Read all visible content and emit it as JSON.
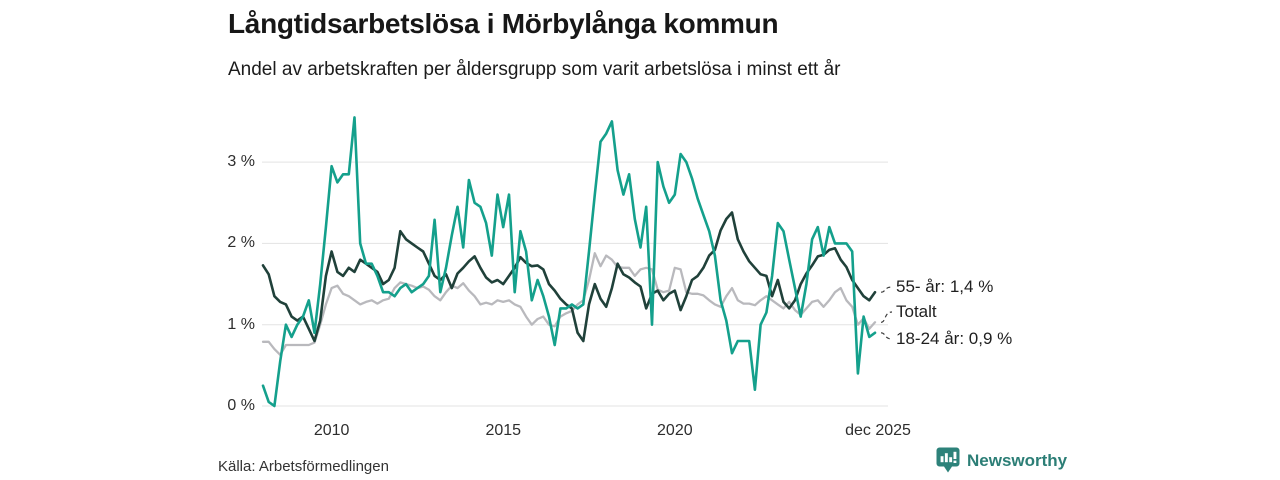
{
  "source": {
    "label": "Källa: Arbetsförmedlingen"
  },
  "branding": {
    "name": "Newsworthy",
    "brand_color": "#2d827a"
  },
  "chart_data": {
    "type": "line",
    "title": "Långtidsarbetslösa i Mörbylånga kommun",
    "subtitle": "Andel av arbetskraften per åldersgrupp som varit arbetslösa i minst ett år",
    "unit": "% av arbetskraften",
    "x_unit": "decimal_year",
    "x_start": 2008.0,
    "x_step": 0.16667,
    "x_end_label_year": 2025.92,
    "ylim": [
      0,
      3.6
    ],
    "grid": "horizontal-only",
    "legend_position": "end-of-line-labels",
    "background": "#ffffff",
    "grid_color": "#e3e3e3",
    "yticks": [
      {
        "v": 0,
        "label": "0 %"
      },
      {
        "v": 1,
        "label": "1 %"
      },
      {
        "v": 2,
        "label": "2 %"
      },
      {
        "v": 3,
        "label": "3 %"
      }
    ],
    "xticks": [
      {
        "year": 2010,
        "label": "2010"
      },
      {
        "year": 2015,
        "label": "2015"
      },
      {
        "year": 2020,
        "label": "2020"
      },
      {
        "year": 2025.92,
        "label": "dec 2025"
      }
    ],
    "series": [
      {
        "name": "55- år",
        "end_label": "55- år: 1,4 %",
        "end_value": 1.4,
        "color": "#20413a",
        "values": [
          1.73,
          1.62,
          1.35,
          1.28,
          1.25,
          1.1,
          1.05,
          1.1,
          0.95,
          0.8,
          1.05,
          1.6,
          1.9,
          1.65,
          1.6,
          1.7,
          1.65,
          1.8,
          1.75,
          1.7,
          1.65,
          1.5,
          1.55,
          1.7,
          2.15,
          2.05,
          2.0,
          1.95,
          1.9,
          1.75,
          1.6,
          1.55,
          1.62,
          1.45,
          1.63,
          1.7,
          1.78,
          1.84,
          1.7,
          1.58,
          1.52,
          1.55,
          1.5,
          1.6,
          1.7,
          1.83,
          1.76,
          1.72,
          1.73,
          1.68,
          1.5,
          1.42,
          1.32,
          1.25,
          1.2,
          0.9,
          0.8,
          1.25,
          1.5,
          1.32,
          1.22,
          1.45,
          1.75,
          1.62,
          1.58,
          1.52,
          1.47,
          1.2,
          1.38,
          1.42,
          1.3,
          1.38,
          1.42,
          1.18,
          1.35,
          1.55,
          1.6,
          1.7,
          1.85,
          1.92,
          2.16,
          2.3,
          2.38,
          2.05,
          1.9,
          1.78,
          1.7,
          1.62,
          1.6,
          1.35,
          1.55,
          1.28,
          1.2,
          1.3,
          1.5,
          1.63,
          1.73,
          1.84,
          1.86,
          1.92,
          1.94,
          1.8,
          1.71,
          1.55,
          1.45,
          1.35,
          1.3,
          1.4
        ]
      },
      {
        "name": "Totalt",
        "end_label": "Totalt",
        "end_value": 1.0,
        "color": "#b9b9bd",
        "values": [
          0.79,
          0.79,
          0.7,
          0.63,
          0.75,
          0.75,
          0.75,
          0.75,
          0.75,
          0.78,
          1.0,
          1.25,
          1.45,
          1.48,
          1.38,
          1.35,
          1.3,
          1.25,
          1.28,
          1.3,
          1.26,
          1.3,
          1.32,
          1.45,
          1.52,
          1.5,
          1.48,
          1.45,
          1.47,
          1.43,
          1.35,
          1.3,
          1.4,
          1.48,
          1.45,
          1.51,
          1.42,
          1.35,
          1.25,
          1.27,
          1.25,
          1.3,
          1.28,
          1.3,
          1.25,
          1.22,
          1.1,
          1.0,
          1.07,
          1.1,
          1.0,
          0.98,
          1.1,
          1.14,
          1.17,
          1.25,
          1.3,
          1.55,
          1.88,
          1.72,
          1.85,
          1.8,
          1.71,
          1.7,
          1.7,
          1.6,
          1.68,
          1.7,
          1.68,
          1.43,
          1.4,
          1.42,
          1.7,
          1.68,
          1.4,
          1.38,
          1.38,
          1.36,
          1.3,
          1.25,
          1.22,
          1.35,
          1.45,
          1.3,
          1.26,
          1.26,
          1.24,
          1.3,
          1.35,
          1.3,
          1.25,
          1.2,
          1.28,
          1.18,
          1.12,
          1.2,
          1.28,
          1.3,
          1.22,
          1.3,
          1.4,
          1.45,
          1.3,
          1.22,
          1.0,
          1.08,
          0.95,
          1.03
        ]
      },
      {
        "name": "18-24 år",
        "end_label": "18-24 år: 0,9 %",
        "end_value": 0.9,
        "color": "#14a08c",
        "values": [
          0.25,
          0.05,
          0.0,
          0.55,
          1.0,
          0.85,
          1.0,
          1.1,
          1.3,
          0.9,
          1.5,
          2.2,
          2.95,
          2.75,
          2.85,
          2.85,
          3.55,
          2.0,
          1.75,
          1.75,
          1.6,
          1.4,
          1.4,
          1.35,
          1.45,
          1.5,
          1.4,
          1.45,
          1.5,
          1.6,
          2.29,
          1.4,
          1.7,
          2.1,
          2.45,
          1.95,
          2.78,
          2.5,
          2.45,
          2.25,
          1.85,
          2.6,
          2.2,
          2.6,
          1.4,
          2.15,
          1.9,
          1.3,
          1.55,
          1.35,
          1.1,
          0.75,
          1.2,
          1.2,
          1.25,
          1.2,
          1.25,
          1.9,
          2.6,
          3.25,
          3.35,
          3.5,
          2.9,
          2.6,
          2.85,
          2.3,
          1.95,
          2.45,
          1.0,
          3.0,
          2.7,
          2.5,
          2.6,
          3.1,
          3.0,
          2.8,
          2.55,
          2.35,
          2.15,
          1.85,
          1.3,
          1.05,
          0.65,
          0.8,
          0.8,
          0.8,
          0.2,
          1.0,
          1.15,
          1.6,
          2.25,
          2.15,
          1.8,
          1.45,
          1.1,
          1.5,
          2.05,
          2.2,
          1.85,
          2.2,
          2.0,
          2.0,
          2.0,
          1.9,
          0.4,
          1.1,
          0.85,
          0.9
        ]
      }
    ]
  }
}
